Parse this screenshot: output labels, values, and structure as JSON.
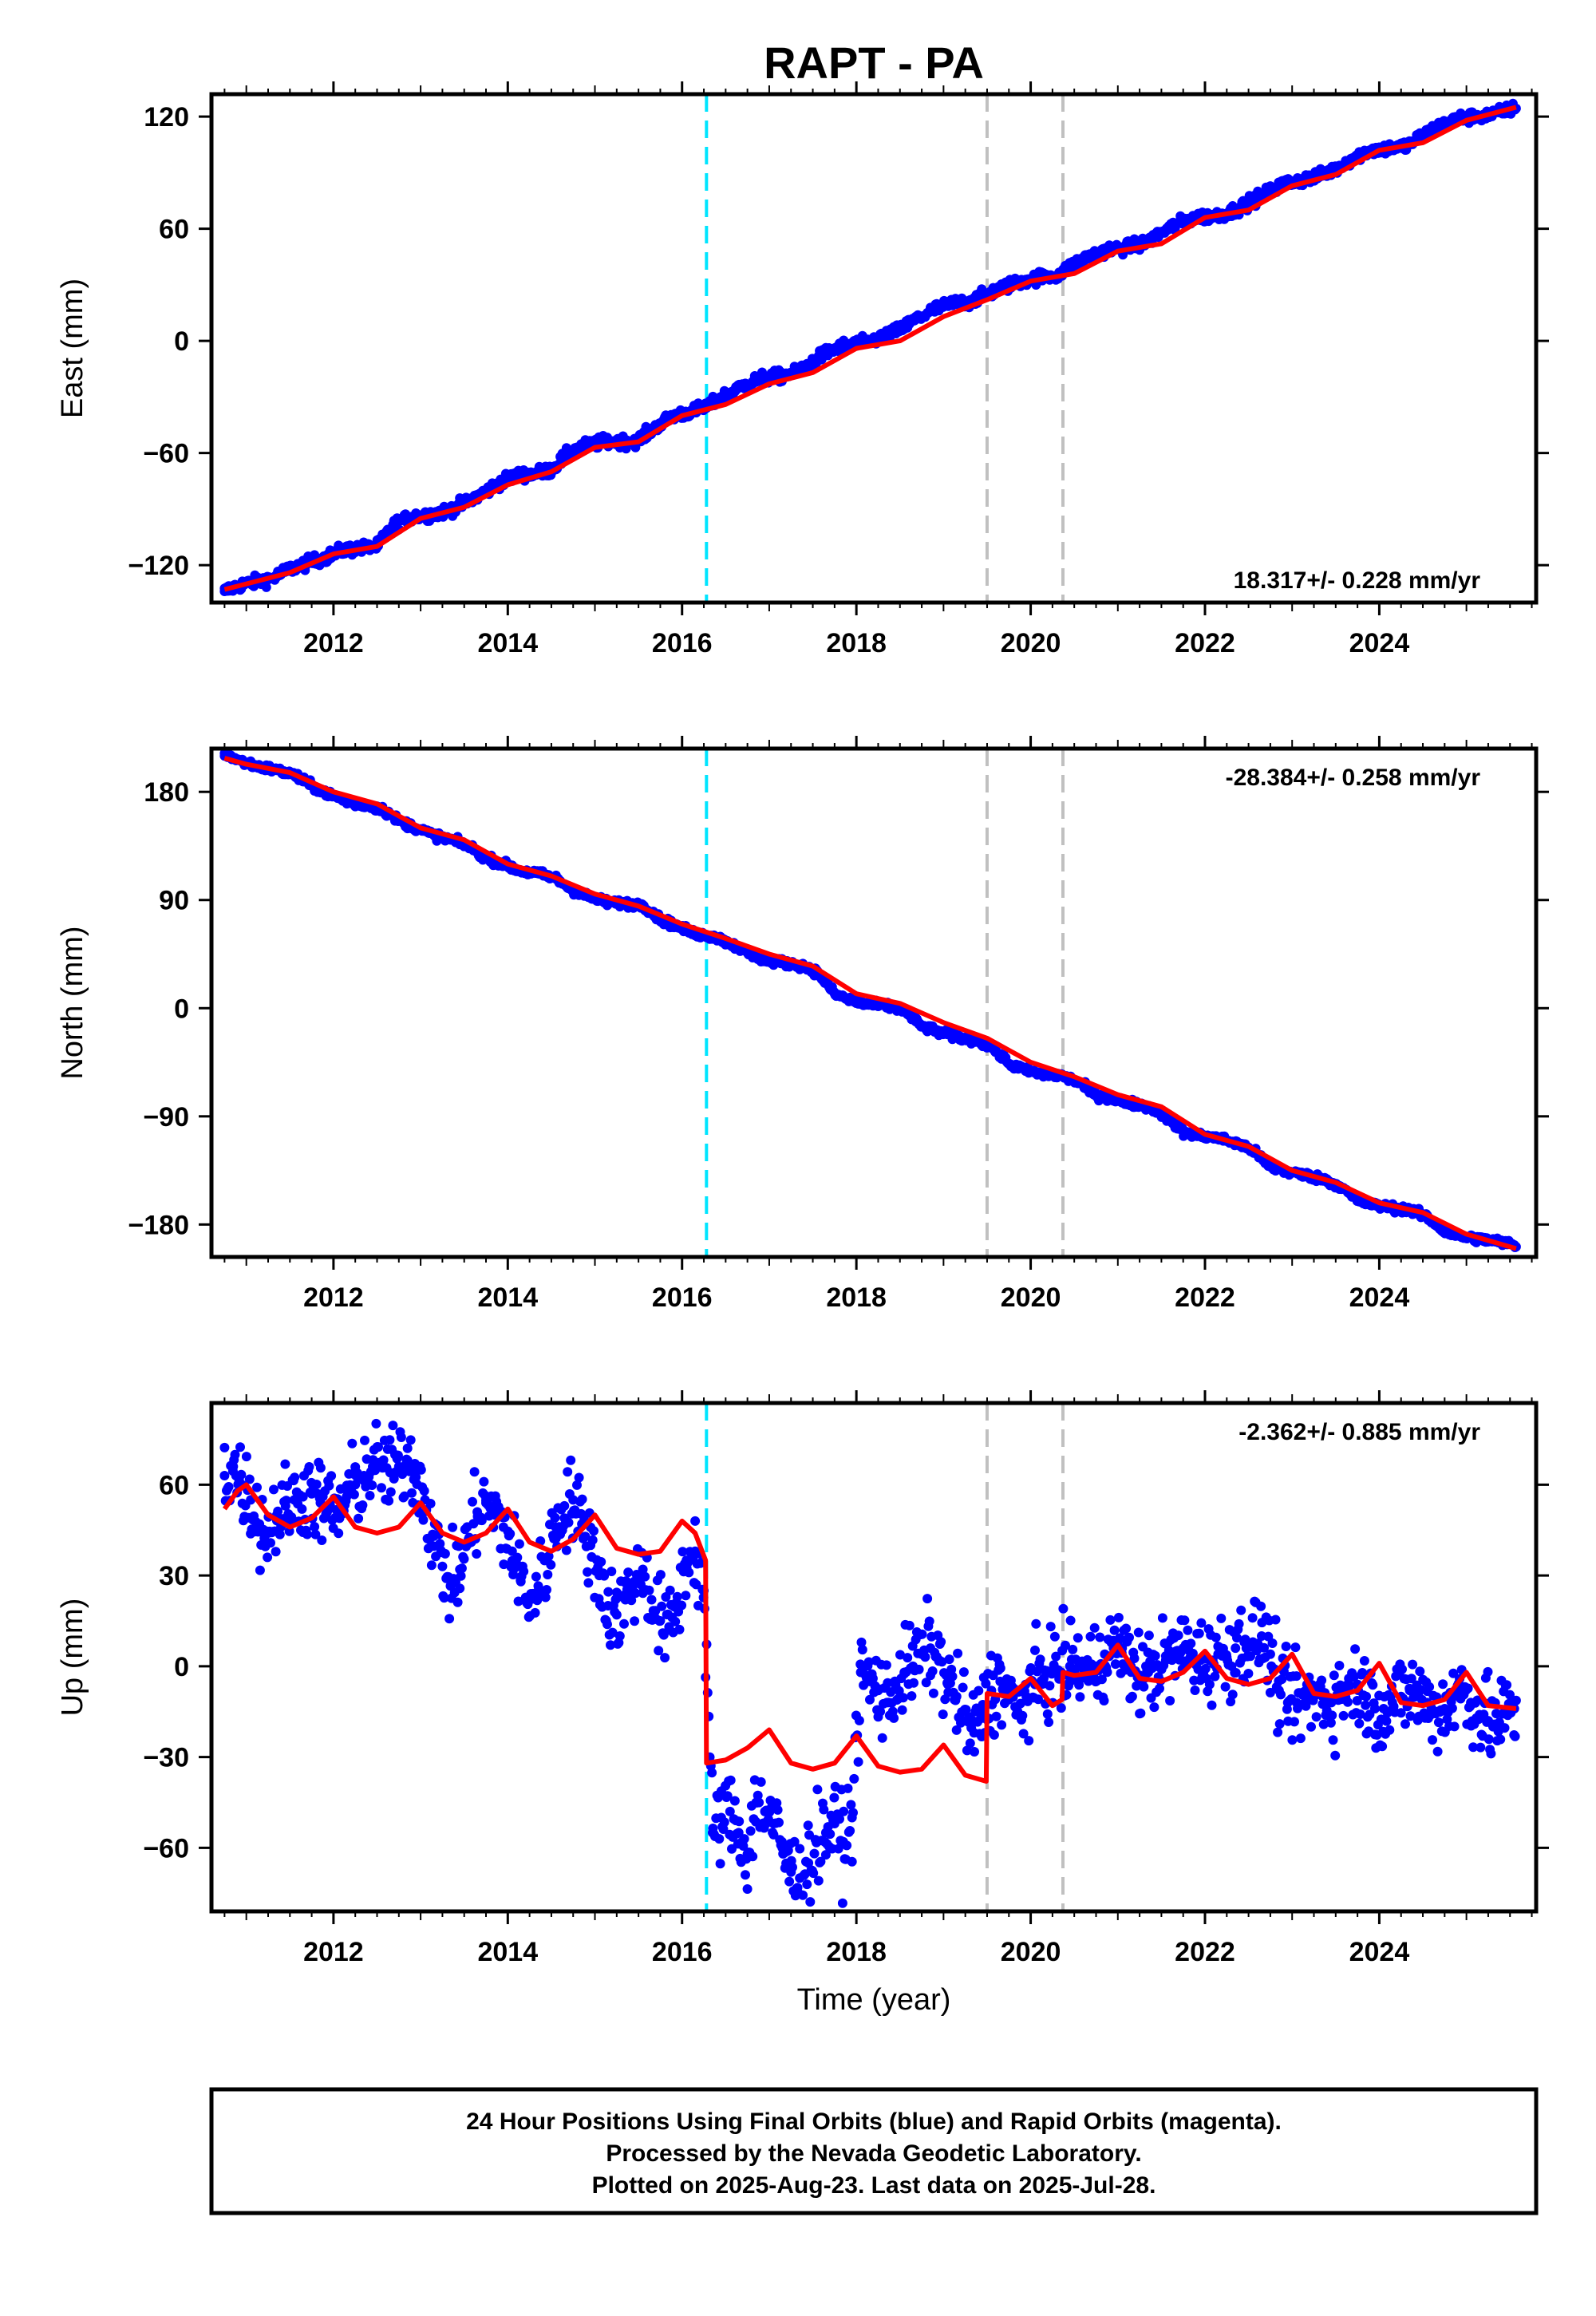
{
  "chart_data": {
    "type": "scatter",
    "title": "RAPT - PA",
    "xlabel": "Time (year)",
    "xlim": [
      2010.6,
      2025.8
    ],
    "x_ticks": [
      2012,
      2014,
      2016,
      2018,
      2020,
      2022,
      2024
    ],
    "x_tick_labels": [
      "2012",
      "2014",
      "2016",
      "2018",
      "2020",
      "2022",
      "2024"
    ],
    "colors": {
      "observations": "#0000ff",
      "model": "#ff0000",
      "antenna_change": "#00e5ff",
      "equipment_change": "#c0c0c0"
    },
    "events": {
      "antenna_change": [
        2016.28
      ],
      "equipment_change": [
        2019.5,
        2020.37
      ]
    },
    "data_start": 2010.75,
    "data_end": 2025.57,
    "panels": [
      {
        "name": "east",
        "ylabel": "East (mm)",
        "ylim": [
          -140,
          132
        ],
        "y_ticks": [
          -120,
          -60,
          0,
          60,
          120
        ],
        "y_tick_labels": [
          "−120",
          "−60",
          "0",
          "60",
          "120"
        ],
        "rate_text": "18.317+/- 0.228 mm/yr",
        "rate_position": "bottom-right",
        "model": {
          "x": [
            2010.75,
            2011.0,
            2011.5,
            2012.0,
            2012.5,
            2013.0,
            2013.5,
            2014.0,
            2014.5,
            2015.0,
            2015.5,
            2016.0,
            2016.5,
            2017.0,
            2017.5,
            2018.0,
            2018.5,
            2019.0,
            2019.5,
            2020.0,
            2020.5,
            2021.0,
            2021.5,
            2022.0,
            2022.5,
            2023.0,
            2023.5,
            2024.0,
            2024.5,
            2025.0,
            2025.57
          ],
          "y": [
            -133,
            -130,
            -124,
            -114,
            -110,
            -95,
            -89,
            -77,
            -70,
            -57,
            -54,
            -40,
            -34,
            -23,
            -17,
            -4,
            0,
            13,
            22,
            32,
            36,
            48,
            52,
            66,
            70,
            83,
            89,
            102,
            106,
            118,
            125
          ]
        },
        "observations": {
          "x": [
            2010.75,
            2010.9,
            2011.1,
            2011.3,
            2011.5,
            2011.7,
            2011.9,
            2012.1,
            2012.3,
            2012.5,
            2012.7,
            2012.9,
            2013.1,
            2013.3,
            2013.5,
            2013.7,
            2013.9,
            2014.1,
            2014.3,
            2014.5,
            2014.7,
            2014.9,
            2015.1,
            2015.3,
            2015.5,
            2015.7,
            2015.9,
            2016.1,
            2016.3,
            2016.5,
            2016.7,
            2016.9,
            2017.1,
            2017.3,
            2017.5,
            2017.7,
            2017.9,
            2018.1,
            2018.3,
            2018.5,
            2018.7,
            2018.9,
            2019.1,
            2019.3,
            2019.5,
            2019.7,
            2019.9,
            2020.1,
            2020.3,
            2020.5,
            2020.7,
            2020.9,
            2021.1,
            2021.3,
            2021.5,
            2021.7,
            2021.9,
            2022.1,
            2022.3,
            2022.5,
            2022.7,
            2022.9,
            2023.1,
            2023.3,
            2023.5,
            2023.7,
            2023.9,
            2024.1,
            2024.3,
            2024.5,
            2024.7,
            2024.9,
            2025.1,
            2025.3,
            2025.5
          ],
          "y": [
            -134,
            -131,
            -129,
            -127,
            -122,
            -119,
            -116,
            -112,
            -111,
            -110,
            -98,
            -94,
            -93,
            -91,
            -87,
            -82,
            -76,
            -72,
            -71,
            -69,
            -60,
            -56,
            -54,
            -54,
            -53,
            -46,
            -40,
            -38,
            -35,
            -29,
            -24,
            -20,
            -19,
            -17,
            -11,
            -5,
            -2,
            -1,
            2,
            6,
            12,
            17,
            20,
            21,
            25,
            29,
            32,
            34,
            35,
            41,
            46,
            49,
            50,
            52,
            58,
            63,
            66,
            67,
            69,
            74,
            79,
            84,
            86,
            88,
            92,
            98,
            102,
            103,
            104,
            110,
            115,
            119,
            120,
            121,
            124
          ]
        }
      },
      {
        "name": "north",
        "ylabel": "North (mm)",
        "ylim": [
          -207,
          216
        ],
        "y_ticks": [
          -180,
          -90,
          0,
          90,
          180
        ],
        "y_tick_labels": [
          "−180",
          "−90",
          "0",
          "90",
          "180"
        ],
        "rate_text": "-28.384+/- 0.258 mm/yr",
        "rate_position": "top-right",
        "model": {
          "x": [
            2010.75,
            2011.0,
            2011.5,
            2012.0,
            2012.5,
            2013.0,
            2013.5,
            2014.0,
            2014.5,
            2015.0,
            2015.5,
            2016.0,
            2016.5,
            2017.0,
            2017.5,
            2018.0,
            2018.5,
            2019.0,
            2019.5,
            2020.0,
            2020.5,
            2021.0,
            2021.5,
            2022.0,
            2022.5,
            2023.0,
            2023.5,
            2024.0,
            2024.5,
            2025.0,
            2025.57
          ],
          "y": [
            208,
            203,
            196,
            180,
            170,
            150,
            140,
            120,
            110,
            95,
            85,
            70,
            58,
            45,
            35,
            12,
            4,
            -12,
            -25,
            -45,
            -57,
            -72,
            -82,
            -105,
            -115,
            -135,
            -145,
            -162,
            -170,
            -188,
            -200
          ]
        },
        "observations": {
          "x": [
            2010.75,
            2010.95,
            2011.15,
            2011.35,
            2011.55,
            2011.75,
            2011.95,
            2012.15,
            2012.35,
            2012.55,
            2012.75,
            2012.95,
            2013.15,
            2013.35,
            2013.55,
            2013.75,
            2013.95,
            2014.15,
            2014.35,
            2014.55,
            2014.75,
            2014.95,
            2015.15,
            2015.35,
            2015.55,
            2015.75,
            2015.95,
            2016.15,
            2016.35,
            2016.55,
            2016.75,
            2016.95,
            2017.15,
            2017.35,
            2017.55,
            2017.75,
            2017.95,
            2018.15,
            2018.35,
            2018.55,
            2018.75,
            2018.95,
            2019.15,
            2019.35,
            2019.55,
            2019.75,
            2019.95,
            2020.15,
            2020.35,
            2020.55,
            2020.75,
            2020.95,
            2021.15,
            2021.35,
            2021.55,
            2021.75,
            2021.95,
            2022.15,
            2022.35,
            2022.55,
            2022.75,
            2022.95,
            2023.15,
            2023.35,
            2023.55,
            2023.75,
            2023.95,
            2024.15,
            2024.35,
            2024.55,
            2024.75,
            2024.95,
            2025.15,
            2025.35,
            2025.55
          ],
          "y": [
            212,
            205,
            201,
            198,
            194,
            185,
            178,
            172,
            169,
            166,
            156,
            150,
            144,
            140,
            135,
            125,
            120,
            114,
            112,
            108,
            98,
            92,
            88,
            87,
            86,
            74,
            68,
            62,
            60,
            54,
            46,
            40,
            38,
            36,
            30,
            12,
            6,
            3,
            2,
            -2,
            -15,
            -20,
            -24,
            -26,
            -32,
            -46,
            -52,
            -55,
            -56,
            -62,
            -72,
            -76,
            -79,
            -82,
            -90,
            -103,
            -106,
            -108,
            -112,
            -118,
            -132,
            -136,
            -139,
            -142,
            -148,
            -160,
            -164,
            -166,
            -168,
            -174,
            -186,
            -190,
            -192,
            -194,
            -197
          ]
        }
      },
      {
        "name": "up",
        "ylabel": "Up (mm)",
        "ylim": [
          -81,
          87
        ],
        "y_ticks": [
          -60,
          -30,
          0,
          30,
          60
        ],
        "y_tick_labels": [
          "−60",
          "−30",
          "0",
          "30",
          "60"
        ],
        "rate_text": "-2.362+/- 0.885 mm/yr",
        "rate_position": "top-right",
        "model": {
          "x": [
            2010.75,
            2010.9,
            2011.0,
            2011.25,
            2011.5,
            2011.75,
            2012.0,
            2012.25,
            2012.5,
            2012.75,
            2013.0,
            2013.25,
            2013.5,
            2013.75,
            2014.0,
            2014.25,
            2014.5,
            2014.75,
            2015.0,
            2015.25,
            2015.5,
            2015.75,
            2016.0,
            2016.15,
            2016.27,
            2016.28,
            2016.5,
            2016.75,
            2017.0,
            2017.25,
            2017.5,
            2017.75,
            2018.0,
            2018.25,
            2018.5,
            2018.75,
            2019.0,
            2019.25,
            2019.49,
            2019.5,
            2019.75,
            2020.0,
            2020.25,
            2020.36,
            2020.37,
            2020.5,
            2020.75,
            2021.0,
            2021.25,
            2021.5,
            2021.75,
            2022.0,
            2022.25,
            2022.5,
            2022.75,
            2023.0,
            2023.25,
            2023.5,
            2023.75,
            2024.0,
            2024.25,
            2024.5,
            2024.75,
            2025.0,
            2025.25,
            2025.57
          ],
          "y": [
            52,
            58,
            60,
            50,
            46,
            49,
            56,
            46,
            44,
            46,
            54,
            44,
            41,
            44,
            52,
            41,
            38,
            42,
            50,
            39,
            37,
            38,
            48,
            44,
            35,
            -32,
            -31,
            -27,
            -21,
            -32,
            -34,
            -32,
            -23,
            -33,
            -35,
            -34,
            -26,
            -36,
            -38,
            -9,
            -10,
            -4,
            -13,
            -11,
            -2,
            -3,
            -2,
            7,
            -4,
            -5,
            -2,
            5,
            -4,
            -6,
            -4,
            4,
            -9,
            -10,
            -8,
            1,
            -12,
            -13,
            -11,
            -2,
            -13,
            -14
          ]
        },
        "observations": {
          "x": [
            2010.75,
            2010.85,
            2010.95,
            2011.05,
            2011.15,
            2011.25,
            2011.35,
            2011.45,
            2011.55,
            2011.65,
            2011.75,
            2011.85,
            2011.95,
            2012.05,
            2012.15,
            2012.25,
            2012.35,
            2012.45,
            2012.55,
            2012.65,
            2012.75,
            2012.85,
            2012.95,
            2013.05,
            2013.15,
            2013.25,
            2013.35,
            2013.45,
            2013.55,
            2013.65,
            2013.75,
            2013.85,
            2013.95,
            2014.05,
            2014.15,
            2014.25,
            2014.35,
            2014.45,
            2014.55,
            2014.65,
            2014.75,
            2014.85,
            2014.95,
            2015.05,
            2015.15,
            2015.25,
            2015.35,
            2015.45,
            2015.55,
            2015.65,
            2015.75,
            2015.85,
            2015.95,
            2016.05,
            2016.15,
            2016.25,
            2016.35,
            2016.45,
            2016.55,
            2016.65,
            2016.75,
            2016.85,
            2016.95,
            2017.05,
            2017.15,
            2017.25,
            2017.35,
            2017.45,
            2017.55,
            2017.65,
            2017.75,
            2017.85,
            2017.95,
            2018.05,
            2018.15,
            2018.25,
            2018.35,
            2018.45,
            2018.55,
            2018.65,
            2018.75,
            2018.85,
            2018.95,
            2019.05,
            2019.15,
            2019.25,
            2019.35,
            2019.45,
            2019.55,
            2019.65,
            2019.75,
            2019.85,
            2019.95,
            2020.05,
            2020.15,
            2020.25,
            2020.35,
            2020.45,
            2020.55,
            2020.65,
            2020.75,
            2020.85,
            2020.95,
            2021.05,
            2021.15,
            2021.25,
            2021.35,
            2021.45,
            2021.55,
            2021.65,
            2021.75,
            2021.85,
            2021.95,
            2022.05,
            2022.15,
            2022.25,
            2022.35,
            2022.45,
            2022.55,
            2022.65,
            2022.75,
            2022.85,
            2022.95,
            2023.05,
            2023.15,
            2023.25,
            2023.35,
            2023.45,
            2023.55,
            2023.65,
            2023.75,
            2023.85,
            2023.95,
            2024.05,
            2024.15,
            2024.25,
            2024.35,
            2024.45,
            2024.55,
            2024.65,
            2024.75,
            2024.85,
            2024.95,
            2025.05,
            2025.15,
            2025.25,
            2025.35,
            2025.45,
            2025.55
          ],
          "y": [
            63,
            66,
            60,
            55,
            47,
            44,
            50,
            53,
            55,
            56,
            57,
            54,
            52,
            50,
            56,
            60,
            63,
            66,
            66,
            64,
            66,
            68,
            65,
            55,
            43,
            33,
            27,
            32,
            42,
            51,
            54,
            50,
            46,
            38,
            28,
            22,
            25,
            35,
            46,
            53,
            55,
            47,
            40,
            30,
            20,
            17,
            22,
            28,
            32,
            22,
            15,
            12,
            20,
            35,
            38,
            25,
            -55,
            -50,
            -48,
            -55,
            -62,
            -45,
            -48,
            -52,
            -60,
            -68,
            -70,
            -65,
            -58,
            -55,
            -52,
            -58,
            -50,
            -2,
            -5,
            -8,
            -12,
            -6,
            -2,
            0,
            4,
            6,
            2,
            -6,
            -10,
            -18,
            -22,
            -15,
            -8,
            -5,
            -10,
            -15,
            -10,
            -6,
            -4,
            -2,
            -2,
            0,
            0,
            -2,
            0,
            4,
            6,
            6,
            0,
            -3,
            -2,
            0,
            2,
            3,
            6,
            4,
            2,
            2,
            4,
            3,
            6,
            8,
            8,
            10,
            4,
            -8,
            -12,
            -12,
            -12,
            -10,
            -10,
            -12,
            -10,
            -6,
            -6,
            -10,
            -14,
            -14,
            -12,
            -10,
            -8,
            -10,
            -12,
            -15,
            -14,
            -10,
            -8,
            -12,
            -16,
            -18,
            -20,
            -15,
            -14
          ]
        }
      }
    ],
    "footer_lines": [
      "24 Hour Positions Using Final Orbits (blue) and Rapid Orbits (magenta).",
      "Processed by the Nevada Geodetic Laboratory.",
      "Plotted on 2025-Aug-23. Last data on 2025-Jul-28."
    ]
  }
}
